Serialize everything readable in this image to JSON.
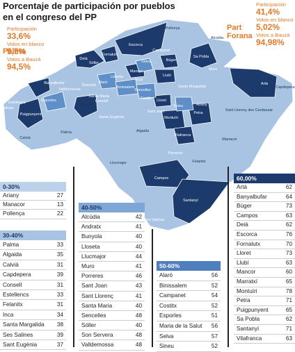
{
  "title": [
    "Porcentaje de participación por pueblos",
    "en el congreso del PP"
  ],
  "palma": {
    "name": "Palma",
    "stats": [
      {
        "label": "Participación",
        "value": "33,6%"
      },
      {
        "label": "Votos en blanco",
        "value": "5,5%"
      },
      {
        "label": "Votos a Bauzá",
        "value": "94,5%"
      }
    ]
  },
  "forana": {
    "name": "Part Forana",
    "stats": [
      {
        "label": "Participación",
        "value": "41,4%"
      },
      {
        "label": "Votos en blanco",
        "value": "5,02%"
      },
      {
        "label": "Votos a Bauzá",
        "value": "94,98%"
      }
    ]
  },
  "map": {
    "labels": [
      "Pollença",
      "Alcúdia",
      "Escorca",
      "Sa Pobla",
      "Campanet",
      "Búger",
      "Muro",
      "Selva",
      "Mancor",
      "Lloseta",
      "Alaró",
      "Bunyola",
      "Sóller",
      "Fornalutx",
      "Deià",
      "Valldemossa",
      "Banyalbufar",
      "Esporles",
      "Estellencs",
      "Puigpunyent",
      "Andratx",
      "Calvià",
      "Palma",
      "Marratxí",
      "Santa Maria",
      "Consell",
      "Binissalem",
      "Santa Eugènia",
      "Sencelles",
      "Inca",
      "Llubí",
      "Lloret",
      "Costitx",
      "Sineu",
      "Santa Margalida",
      "Ariany",
      "Petra",
      "Sant Joan",
      "Montuïri",
      "Vilafranca",
      "Algaida",
      "Porreres",
      "Llucmajor",
      "Manacor",
      "Sant Llorenç des Cardassar",
      "Artà",
      "Capdepera",
      "Felanitx",
      "Campos",
      "Santanyí",
      "Ses Salines"
    ]
  },
  "groups": [
    {
      "header": "0-30%",
      "rows": [
        [
          "Ariany",
          27
        ],
        [
          "Manacor",
          13
        ],
        [
          "Pollença",
          22
        ]
      ]
    },
    {
      "header": "30-40%",
      "rows": [
        [
          "Palma",
          33
        ],
        [
          "Algaida",
          35
        ],
        [
          "Calvià",
          31
        ],
        [
          "Capdepera",
          39
        ],
        [
          "Consell",
          31
        ],
        [
          "Estellencs",
          33
        ],
        [
          "Felanitx",
          31
        ],
        [
          "Inca",
          34
        ],
        [
          "Santa Margalida",
          38
        ],
        [
          "Ses Salines",
          39
        ],
        [
          "Sant Eugènia",
          37
        ]
      ]
    },
    {
      "header": "40-50%",
      "rows": [
        [
          "Alcúdia",
          42
        ],
        [
          "Andratx",
          41
        ],
        [
          "Bunyola",
          40
        ],
        [
          "Lloseta",
          40
        ],
        [
          "Llucmajor",
          44
        ],
        [
          "Muro",
          41
        ],
        [
          "Porreres",
          46
        ],
        [
          "Sant Joan",
          43
        ],
        [
          "Sant Llorenç",
          41
        ],
        [
          "Santa Maria",
          40
        ],
        [
          "Sencelles",
          48
        ],
        [
          "Sóller",
          40
        ],
        [
          "Son Servera",
          48
        ],
        [
          "Valldemossa",
          48
        ]
      ]
    },
    {
      "header": "50-60%",
      "rows": [
        [
          "Alaró",
          56
        ],
        [
          "Binissalem",
          52
        ],
        [
          "Campanet",
          54
        ],
        [
          "Costitx",
          52
        ],
        [
          "Esporles",
          51
        ],
        [
          "Maria de la Salut",
          56
        ],
        [
          "Selva",
          57
        ],
        [
          "Sineu",
          52
        ]
      ]
    },
    {
      "header": "60,00%",
      "rows": [
        [
          "Artà",
          62
        ],
        [
          "Banyalbufar",
          64
        ],
        [
          "Búger",
          73
        ],
        [
          "Campos",
          63
        ],
        [
          "Deià",
          62
        ],
        [
          "Escorca",
          76
        ],
        [
          "Fornalutx",
          70
        ],
        [
          "Lloret",
          73
        ],
        [
          "Llubí",
          63
        ],
        [
          "Mancor",
          60
        ],
        [
          "Marratxí",
          65
        ],
        [
          "Montuïri",
          78
        ],
        [
          "Petra",
          71
        ],
        [
          "Puigpunyent",
          65
        ],
        [
          "Sa Pobla",
          62
        ],
        [
          "Santanyí",
          71
        ],
        [
          "Vilafranca",
          63
        ]
      ]
    }
  ]
}
